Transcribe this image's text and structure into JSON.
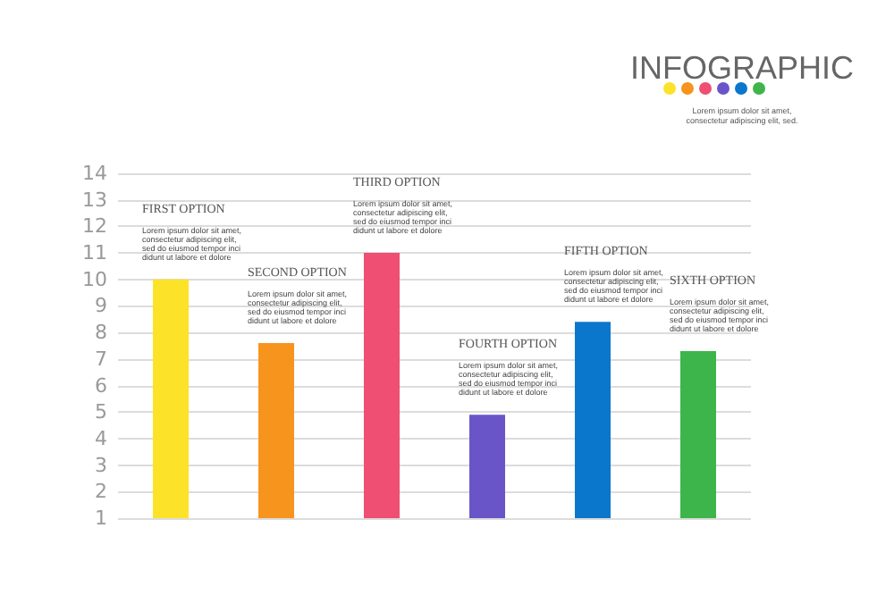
{
  "chart_data": {
    "type": "bar",
    "title": "INFOGRAPHIC",
    "subtitle": "Lorem ipsum dolor sit amet,\nconsectetur adipiscing elit, sed.",
    "categories": [
      "FIRST OPTION",
      "SECOND OPTION",
      "THIRD OPTION",
      "FOURTH OPTION",
      "FIFTH OPTION",
      "SIXTH OPTION"
    ],
    "values": [
      10,
      7.6,
      11,
      4.9,
      8.4,
      7.3
    ],
    "colors": [
      "#fde22a",
      "#f7941d",
      "#ee4f72",
      "#6a55c8",
      "#0b77cc",
      "#3db54a"
    ],
    "ylim": [
      1,
      14
    ],
    "yticks": [
      1,
      2,
      3,
      4,
      5,
      6,
      7,
      8,
      9,
      10,
      11,
      12,
      13,
      14
    ],
    "grid": "y",
    "tick_labels": "y",
    "annotations": [
      "Lorem ipsum dolor sit amet,\nconsectetur adipiscing elit,\nsed do eiusmod tempor inci\ndidunt ut labore et dolore",
      "Lorem ipsum dolor sit amet,\nconsectetur adipiscing elit,\nsed do eiusmod tempor inci\ndidunt ut labore et dolore",
      "Lorem ipsum dolor sit amet,\nconsectetur adipiscing elit,\nsed do eiusmod tempor inci\ndidunt ut labore et dolore",
      "Lorem ipsum dolor sit amet,\nconsectetur adipiscing elit,\nsed do eiusmod tempor inci\ndidunt ut labore et dolore",
      "Lorem ipsum dolor sit amet,\nconsectetur adipiscing elit,\nsed do eiusmod tempor inci\ndidunt ut labore et dolore",
      "Lorem ipsum dolor sit amet,\nconsectetur adipiscing elit,\nsed do eiusmod tempor inci\ndidunt ut labore et dolore"
    ]
  }
}
